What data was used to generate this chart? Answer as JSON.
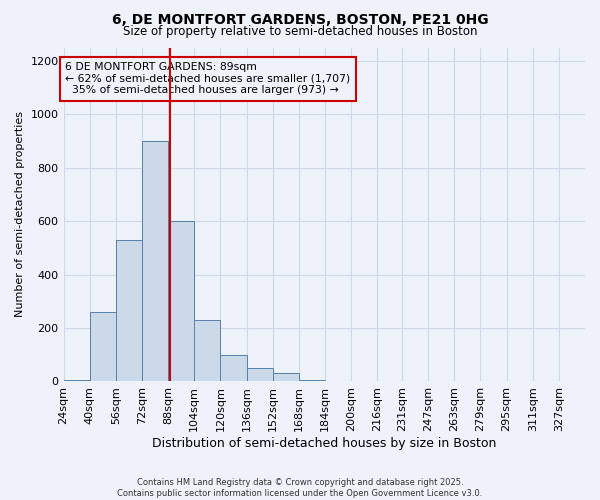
{
  "title": "6, DE MONTFORT GARDENS, BOSTON, PE21 0HG",
  "subtitle": "Size of property relative to semi-detached houses in Boston",
  "xlabel": "Distribution of semi-detached houses by size in Boston",
  "ylabel": "Number of semi-detached properties",
  "property_label": "6 DE MONTFORT GARDENS: 89sqm",
  "pct_smaller": 62,
  "n_smaller": "1,707",
  "pct_larger": 35,
  "n_larger": "973",
  "bin_edges": [
    24,
    40,
    56,
    72,
    88,
    104,
    120,
    136,
    152,
    168,
    184,
    200,
    216,
    231,
    247,
    263,
    279,
    295,
    311,
    327,
    343
  ],
  "bar_heights": [
    5,
    260,
    530,
    900,
    600,
    230,
    100,
    50,
    30,
    5,
    3,
    0,
    0,
    0,
    0,
    0,
    0,
    0,
    0,
    0
  ],
  "bar_color": "#ccd9e8",
  "bar_edge_color": "#5580aa",
  "vline_color": "#cc0000",
  "vline_x": 89,
  "box_color": "#cc0000",
  "ylim": [
    0,
    1250
  ],
  "yticks": [
    0,
    200,
    400,
    600,
    800,
    1000,
    1200
  ],
  "background_color": "#eef2fa",
  "grid_color": "#d0d8e8",
  "footer_line1": "Contains HM Land Registry data © Crown copyright and database right 2025.",
  "footer_line2": "Contains public sector information licensed under the Open Government Licence v3.0."
}
